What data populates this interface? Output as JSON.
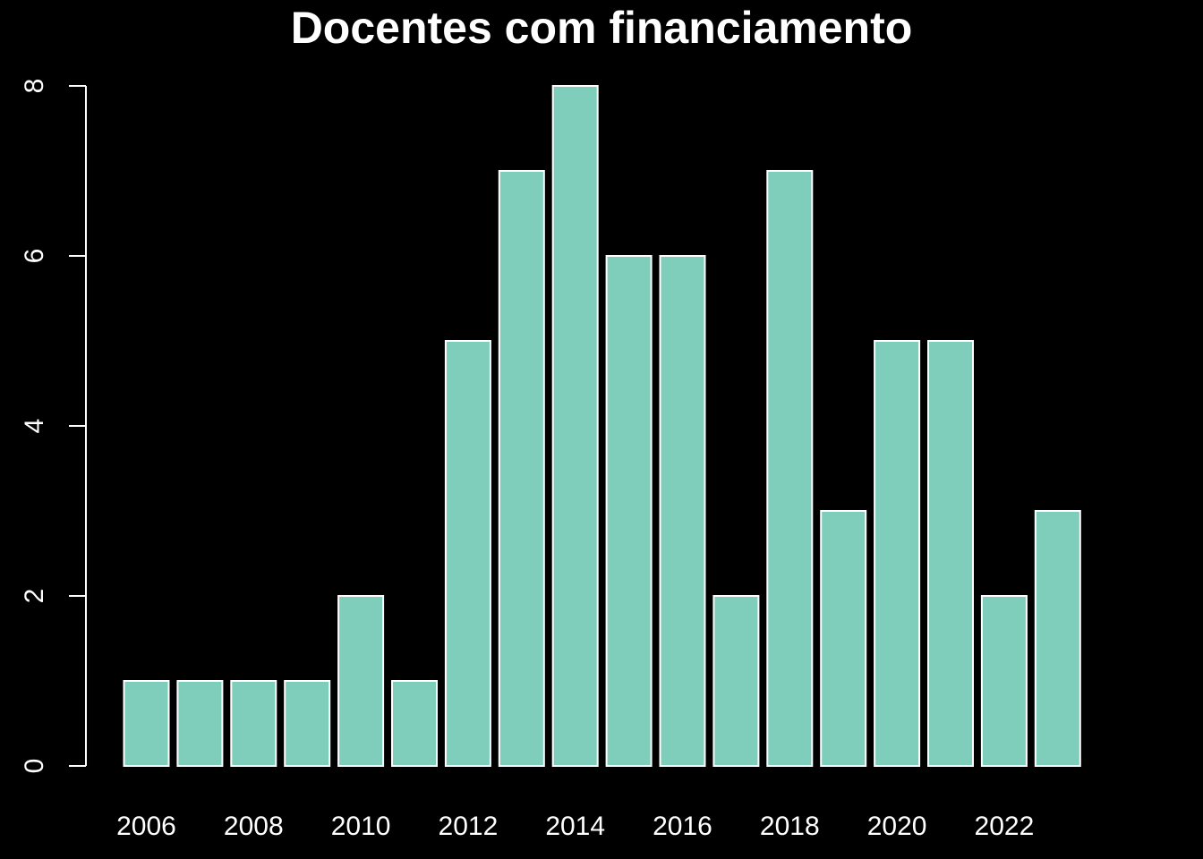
{
  "chart_data": {
    "type": "bar",
    "title": "Docentes com financiamento",
    "xlabel": "",
    "ylabel": "",
    "categories": [
      "2006",
      "2007",
      "2008",
      "2009",
      "2010",
      "2011",
      "2012",
      "2013",
      "2014",
      "2015",
      "2016",
      "2017",
      "2018",
      "2019",
      "2020",
      "2021",
      "2022",
      "2023"
    ],
    "values": [
      1,
      1,
      1,
      1,
      2,
      1,
      5,
      7,
      8,
      6,
      6,
      2,
      7,
      3,
      5,
      5,
      2,
      3
    ],
    "x_tick_labels": [
      "2006",
      "2008",
      "2010",
      "2012",
      "2014",
      "2016",
      "2018",
      "2020",
      "2022"
    ],
    "y_ticks": [
      0,
      2,
      4,
      6,
      8
    ],
    "ylim": [
      0,
      8
    ],
    "grid": false,
    "legend": "none",
    "colors": {
      "background": "#000000",
      "bar_fill": "#7fcdbb",
      "bar_stroke": "#ffffff",
      "axis": "#ffffff",
      "text": "#ffffff"
    }
  }
}
